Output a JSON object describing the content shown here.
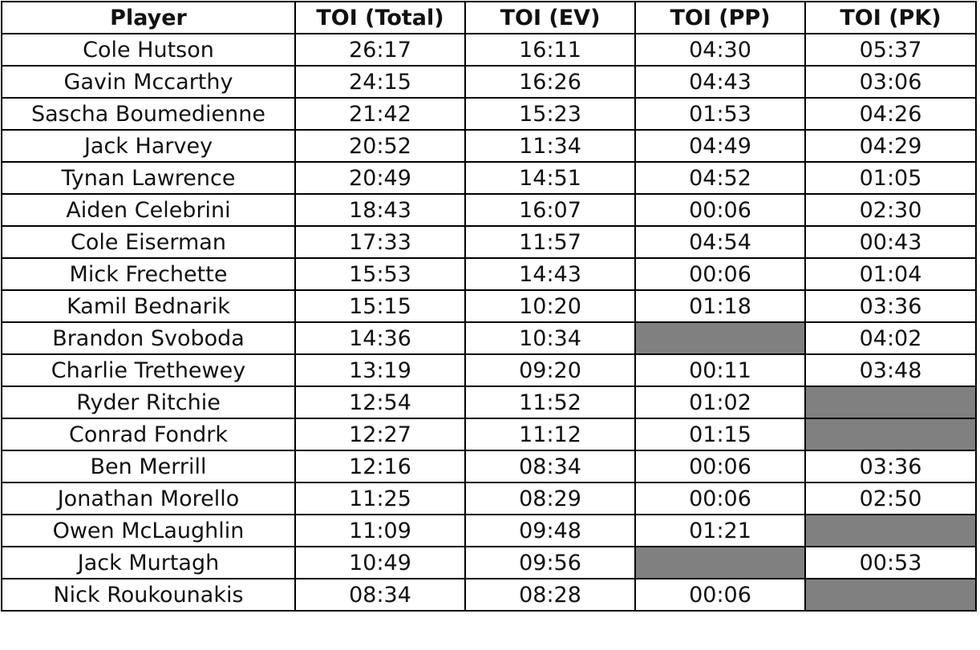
{
  "table": {
    "columns": [
      "Player",
      "TOI (Total)",
      "TOI (EV)",
      "TOI (PP)",
      "TOI (PK)"
    ],
    "rows": [
      [
        "Cole Hutson",
        "26:17",
        "16:11",
        "04:30",
        "05:37"
      ],
      [
        "Gavin Mccarthy",
        "24:15",
        "16:26",
        "04:43",
        "03:06"
      ],
      [
        "Sascha Boumedienne",
        "21:42",
        "15:23",
        "01:53",
        "04:26"
      ],
      [
        "Jack Harvey",
        "20:52",
        "11:34",
        "04:49",
        "04:29"
      ],
      [
        "Tynan Lawrence",
        "20:49",
        "14:51",
        "04:52",
        "01:05"
      ],
      [
        "Aiden Celebrini",
        "18:43",
        "16:07",
        "00:06",
        "02:30"
      ],
      [
        "Cole Eiserman",
        "17:33",
        "11:57",
        "04:54",
        "00:43"
      ],
      [
        "Mick Frechette",
        "15:53",
        "14:43",
        "00:06",
        "01:04"
      ],
      [
        "Kamil Bednarik",
        "15:15",
        "10:20",
        "01:18",
        "03:36"
      ],
      [
        "Brandon Svoboda",
        "14:36",
        "10:34",
        null,
        "04:02"
      ],
      [
        "Charlie Trethewey",
        "13:19",
        "09:20",
        "00:11",
        "03:48"
      ],
      [
        "Ryder Ritchie",
        "12:54",
        "11:52",
        "01:02",
        null
      ],
      [
        "Conrad Fondrk",
        "12:27",
        "11:12",
        "01:15",
        null
      ],
      [
        "Ben Merrill",
        "12:16",
        "08:34",
        "00:06",
        "03:36"
      ],
      [
        "Jonathan Morello",
        "11:25",
        "08:29",
        "00:06",
        "02:50"
      ],
      [
        "Owen McLaughlin",
        "11:09",
        "09:48",
        "01:21",
        null
      ],
      [
        "Jack Murtagh",
        "10:49",
        "09:56",
        null,
        "00:53"
      ],
      [
        "Nick Roukounakis",
        "08:34",
        "08:28",
        "00:06",
        null
      ]
    ]
  }
}
